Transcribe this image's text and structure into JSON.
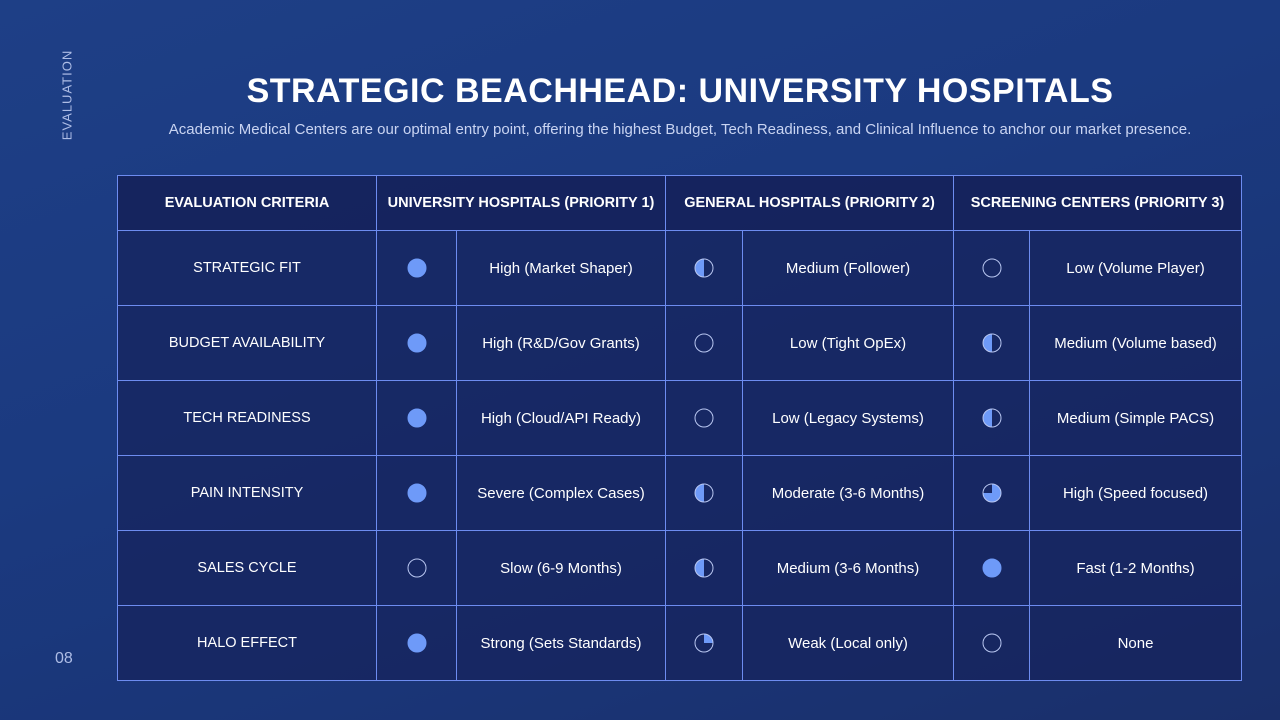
{
  "side_label": "EVALUATION",
  "page_number": "08",
  "title": "STRATEGIC BEACHHEAD: UNIVERSITY HOSPITALS",
  "subtitle": "Academic Medical Centers are our optimal entry point, offering the highest Budget, Tech Readiness, and Clinical Influence to anchor our market presence.",
  "colors": {
    "ball": "#6e9af8",
    "border": "#6d8cf0"
  },
  "headers": [
    "EVALUATION CRITERIA",
    "UNIVERSITY HOSPITALS (PRIORITY 1)",
    "GENERAL HOSPITALS (PRIORITY 2)",
    "SCREENING CENTERS (PRIORITY 3)"
  ],
  "rows": [
    {
      "criteria": "STRATEGIC FIT",
      "cells": [
        {
          "level": 1,
          "text": "High (Market Shaper)"
        },
        {
          "level": 0.5,
          "text": "Medium (Follower)"
        },
        {
          "level": 0,
          "text": "Low (Volume Player)"
        }
      ]
    },
    {
      "criteria": "BUDGET AVAILABILITY",
      "cells": [
        {
          "level": 1,
          "text": "High (R&D/Gov Grants)"
        },
        {
          "level": 0,
          "text": "Low (Tight OpEx)"
        },
        {
          "level": 0.5,
          "text": "Medium (Volume based)"
        }
      ]
    },
    {
      "criteria": "TECH READINESS",
      "cells": [
        {
          "level": 1,
          "text": "High (Cloud/API Ready)"
        },
        {
          "level": 0,
          "text": "Low (Legacy Systems)"
        },
        {
          "level": 0.5,
          "text": "Medium (Simple PACS)"
        }
      ]
    },
    {
      "criteria": "PAIN INTENSITY",
      "cells": [
        {
          "level": 1,
          "text": "Severe (Complex Cases)"
        },
        {
          "level": 0.5,
          "text": "Moderate (3-6 Months)"
        },
        {
          "level": 0.75,
          "text": "High (Speed focused)"
        }
      ]
    },
    {
      "criteria": "SALES CYCLE",
      "cells": [
        {
          "level": 0,
          "text": "Slow (6-9 Months)"
        },
        {
          "level": 0.5,
          "text": "Medium (3-6 Months)"
        },
        {
          "level": 1,
          "text": "Fast (1-2 Months)"
        }
      ]
    },
    {
      "criteria": "HALO EFFECT",
      "cells": [
        {
          "level": 1,
          "text": "Strong (Sets Standards)"
        },
        {
          "level": 0.25,
          "text": "Weak (Local only)"
        },
        {
          "level": 0,
          "text": "None"
        }
      ]
    }
  ]
}
